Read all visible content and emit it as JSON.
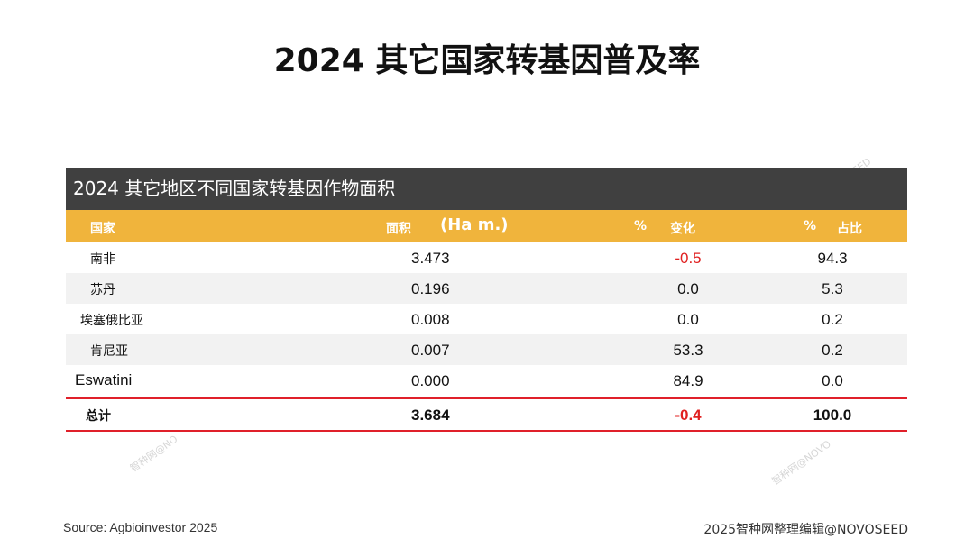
{
  "slide": {
    "title": "2024 其它国家转基因普及率",
    "watermarks": [
      "智种网@NOVOSEED",
      "智种网@NO",
      "智种网@NOVO"
    ]
  },
  "table": {
    "title": "2024 其它地区不同国家转基因作物面积",
    "headers": {
      "country": "国家",
      "area": "面积",
      "area_unit": "(Ha m.)",
      "change_pct": "%",
      "change_label": "变化",
      "share_pct": "%",
      "share_label": "占比"
    },
    "rows": [
      {
        "country": "南非",
        "area": "3.473",
        "change": "-0.5",
        "share": "94.3"
      },
      {
        "country": "苏丹",
        "area": "0.196",
        "change": "0.0",
        "share": "5.3"
      },
      {
        "country": "埃塞俄比亚",
        "area": "0.008",
        "change": "0.0",
        "share": "0.2"
      },
      {
        "country": "肯尼亚",
        "area": "0.007",
        "change": "53.3",
        "share": "0.2"
      },
      {
        "country": "Eswatini",
        "area": "0.000",
        "change": "84.9",
        "share": "0.0"
      }
    ],
    "total": {
      "label": "总计",
      "area": "3.684",
      "change": "-0.4",
      "share": "100.0"
    }
  },
  "footer": {
    "source": "Source: Agbioinvestor 2025",
    "credit": "2025智种网整理编辑@NOVOSEED"
  },
  "colors": {
    "header_dark": "#404040",
    "header_yellow": "#f0b43c",
    "accent_red": "#e0202a"
  }
}
